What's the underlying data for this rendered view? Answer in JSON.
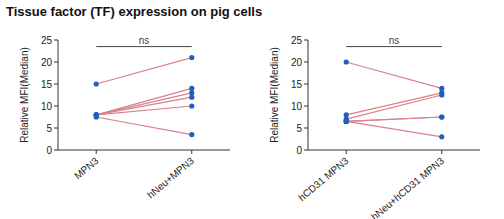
{
  "chart_data": [
    {
      "type": "slope",
      "title": "Tissue factor (TF) expression on pig cells",
      "y_label": "Relative MFI(Median)",
      "categories": [
        "MPN3",
        "hNeu+MPN3"
      ],
      "series": [
        {
          "values": [
            15,
            21
          ]
        },
        {
          "values": [
            8,
            14
          ]
        },
        {
          "values": [
            8,
            13
          ]
        },
        {
          "values": [
            8,
            12
          ]
        },
        {
          "values": [
            8,
            10
          ]
        },
        {
          "values": [
            7.5,
            3.5
          ]
        }
      ],
      "annotations": [
        {
          "text": "ns",
          "y": 23.5
        }
      ],
      "ylim": [
        0,
        25
      ],
      "yticks": [
        0,
        5,
        10,
        15,
        20,
        25
      ]
    },
    {
      "type": "slope",
      "y_label": "Relative MFI(Median)",
      "categories": [
        "hCD31 MPN3",
        "hNeu+hCD31 MPN3"
      ],
      "series": [
        {
          "values": [
            20,
            14
          ]
        },
        {
          "values": [
            8,
            13
          ]
        },
        {
          "values": [
            7,
            12.5
          ]
        },
        {
          "values": [
            6.5,
            7.5
          ]
        },
        {
          "values": [
            6.5,
            7.5
          ]
        },
        {
          "values": [
            6.5,
            3
          ]
        }
      ],
      "annotations": [
        {
          "text": "ns",
          "y": 23.5
        }
      ],
      "ylim": [
        0,
        25
      ],
      "yticks": [
        0,
        5,
        10,
        15,
        20,
        25
      ]
    }
  ]
}
